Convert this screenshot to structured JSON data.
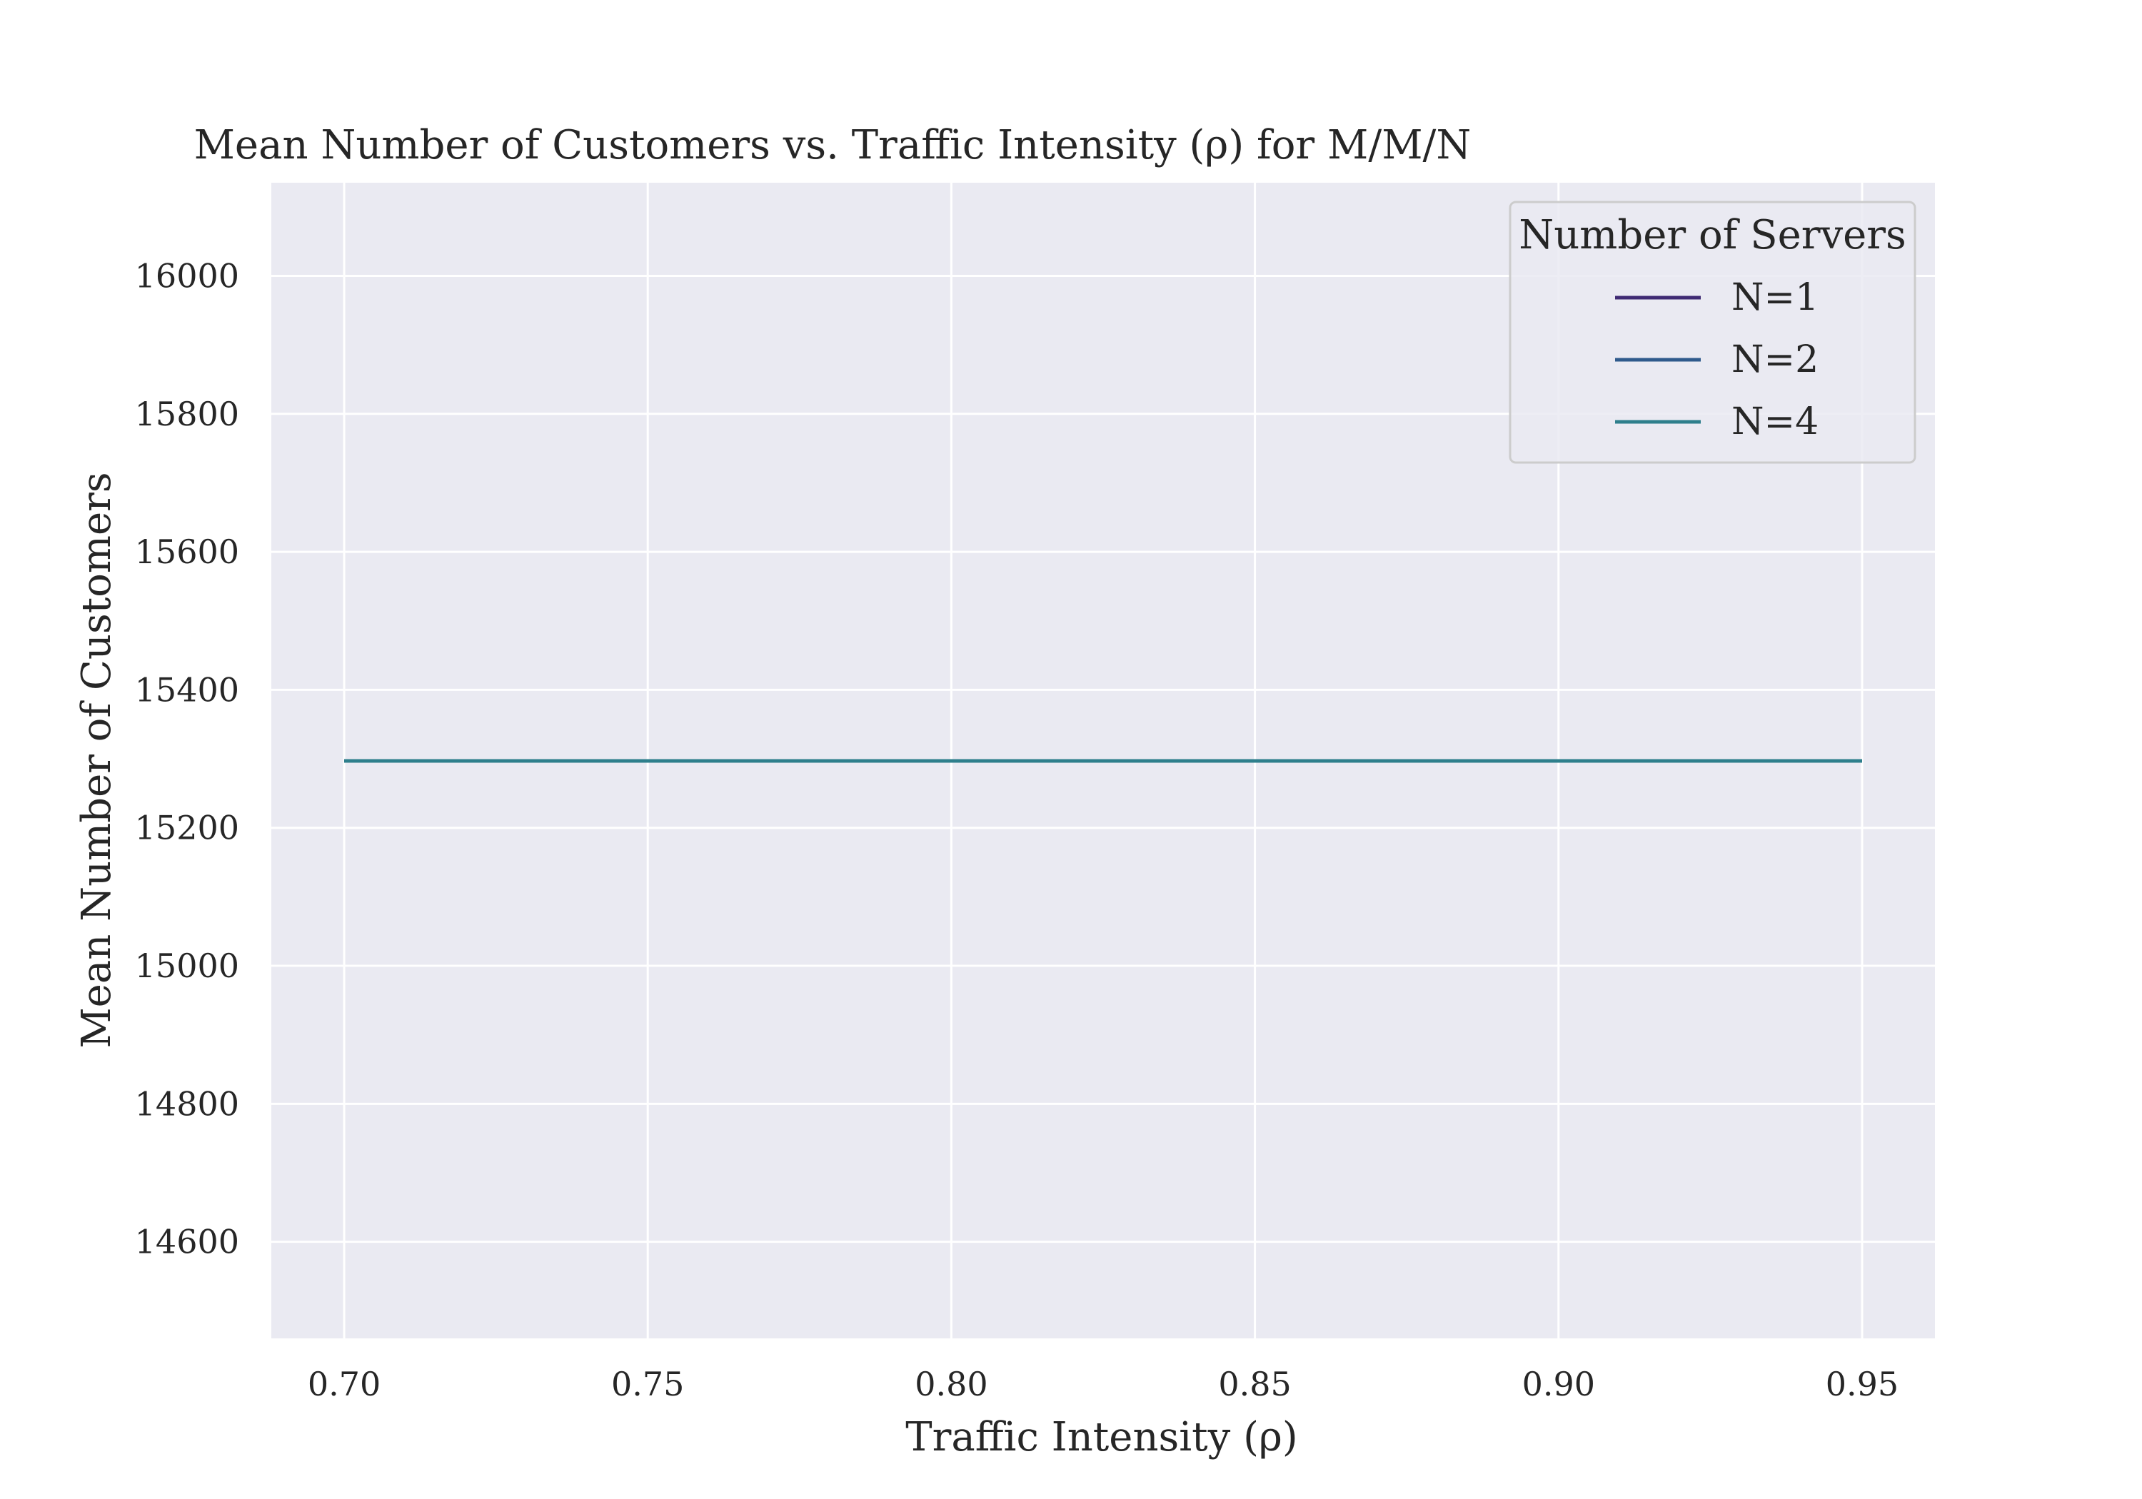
{
  "chart_data": {
    "type": "line",
    "title": "Mean Number of Customers vs. Traffic Intensity (ρ) for M/M/N",
    "xlabel": "Traffic Intensity (ρ)",
    "ylabel": "Mean Number of Customers",
    "xlim": [
      0.688,
      0.962
    ],
    "ylim": [
      14460,
      16135
    ],
    "xticks": [
      0.7,
      0.75,
      0.8,
      0.85,
      0.9,
      0.95
    ],
    "xtick_labels": [
      "0.70",
      "0.75",
      "0.80",
      "0.85",
      "0.90",
      "0.95"
    ],
    "yticks": [
      14600,
      14800,
      15000,
      15200,
      15400,
      15600,
      15800,
      16000
    ],
    "ytick_labels": [
      "14600",
      "14800",
      "15000",
      "15200",
      "15400",
      "15600",
      "15800",
      "16000"
    ],
    "grid": true,
    "plot_background": "#eaeaf2",
    "legend": {
      "title": "Number of Servers",
      "placement": "top-right"
    },
    "x": [
      0.7,
      0.75,
      0.8,
      0.85,
      0.9,
      0.95
    ],
    "series": [
      {
        "name": "N=1",
        "color": "#3f2a73",
        "values": [
          15297,
          15297,
          15297,
          15297,
          15297,
          15297
        ]
      },
      {
        "name": "N=2",
        "color": "#2f5a8c",
        "values": [
          15297,
          15297,
          15297,
          15297,
          15297,
          15297
        ]
      },
      {
        "name": "N=4",
        "color": "#2e7f8c",
        "values": [
          15297,
          15297,
          15297,
          15297,
          15297,
          15297
        ]
      }
    ]
  }
}
